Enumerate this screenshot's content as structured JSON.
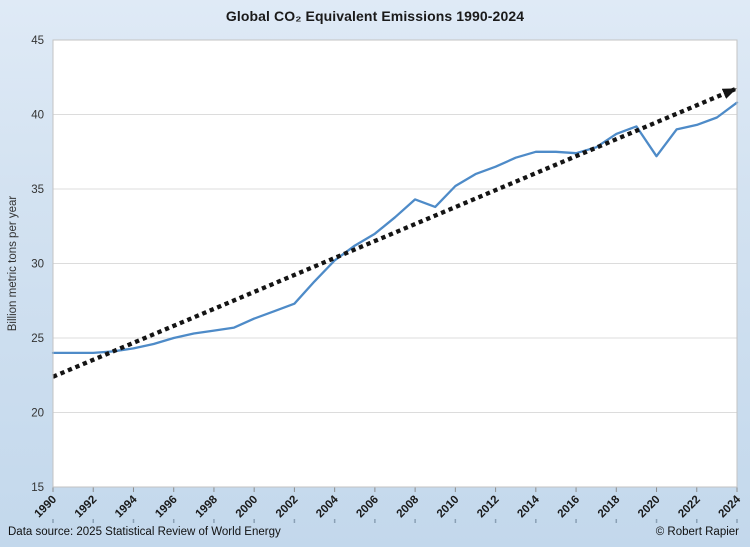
{
  "title": "Global CO₂ Equivalent Emissions 1990-2024",
  "footer": {
    "source": "Data source: 2025 Statistical Review of World Energy",
    "credit": "© Robert Rapier"
  },
  "colors": {
    "background_top": "#dfeaf6",
    "background_bottom": "#c3d8ec",
    "plot_background": "#ffffff",
    "gridline": "#dcdcdc",
    "plot_border": "#c3c3c3",
    "series_line": "#4e8bc8",
    "trend_line": "#141414",
    "axis_text": "#333333",
    "tick_mark": "#8c8c8c"
  },
  "chart_data": {
    "type": "line",
    "title": "Global CO₂ Equivalent Emissions 1990-2024",
    "xlabel": "",
    "ylabel": "Billion metric tons per year",
    "ylim": [
      15,
      45
    ],
    "xlim": [
      1990,
      2024
    ],
    "y_ticks": [
      15,
      20,
      25,
      30,
      35,
      40,
      45
    ],
    "x_ticks": [
      1990,
      1992,
      1994,
      1996,
      1998,
      2000,
      2002,
      2004,
      2006,
      2008,
      2010,
      2012,
      2014,
      2016,
      2018,
      2020,
      2022,
      2024
    ],
    "grid": "horizontal",
    "legend": "none",
    "series": [
      {
        "name": "Global CO2 equivalent emissions",
        "color": "#4e8bc8",
        "x": [
          1990,
          1991,
          1992,
          1993,
          1994,
          1995,
          1996,
          1997,
          1998,
          1999,
          2000,
          2001,
          2002,
          2003,
          2004,
          2005,
          2006,
          2007,
          2008,
          2009,
          2010,
          2011,
          2012,
          2013,
          2014,
          2015,
          2016,
          2017,
          2018,
          2019,
          2020,
          2021,
          2022,
          2023,
          2024
        ],
        "values": [
          24.0,
          24.0,
          24.0,
          24.1,
          24.3,
          24.6,
          25.0,
          25.3,
          25.5,
          25.7,
          26.3,
          26.8,
          27.3,
          28.8,
          30.2,
          31.2,
          32.0,
          33.1,
          34.3,
          33.8,
          35.2,
          36.0,
          36.5,
          37.1,
          37.5,
          37.5,
          37.4,
          37.8,
          38.7,
          39.2,
          37.2,
          39.0,
          39.3,
          39.8,
          40.8
        ]
      }
    ],
    "trendline": {
      "style": "dotted",
      "arrow_at_end": true,
      "color": "#141414",
      "start": {
        "x": 1990,
        "y": 22.4
      },
      "end": {
        "x": 2023.9,
        "y": 41.7
      }
    }
  }
}
